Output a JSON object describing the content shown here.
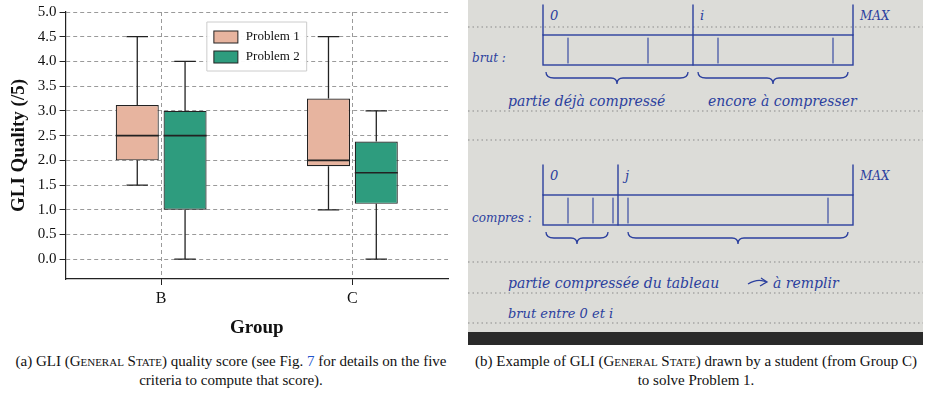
{
  "chart_data": {
    "type": "box",
    "x_label": "Group",
    "y_label": "GLI Quality (/5)",
    "categories": [
      "B",
      "C"
    ],
    "series": [
      {
        "name": "Problem 1",
        "color": "#e7b49f",
        "values": [
          {
            "whisker_low": 1.5,
            "q1": 2.0,
            "median": 2.5,
            "q3": 3.12,
            "whisker_high": 4.5
          },
          {
            "whisker_low": 1.0,
            "q1": 1.88,
            "median": 2.0,
            "q3": 3.25,
            "whisker_high": 4.5
          }
        ]
      },
      {
        "name": "Problem 2",
        "color": "#2e9c7e",
        "values": [
          {
            "whisker_low": 0.0,
            "q1": 1.0,
            "median": 2.5,
            "q3": 3.0,
            "whisker_high": 4.0
          },
          {
            "whisker_low": 0.0,
            "q1": 1.12,
            "median": 1.75,
            "q3": 2.38,
            "whisker_high": 3.0
          }
        ]
      }
    ],
    "ylim": [
      -0.4,
      5.0
    ],
    "yticks": [
      {
        "value": 0,
        "label": "0.0"
      },
      0.5,
      {
        "value": 1,
        "label": "1.0"
      },
      1.5,
      {
        "value": 2,
        "label": "2.0"
      },
      2.5,
      {
        "value": 3,
        "label": "3.0"
      },
      3.5,
      {
        "value": 4,
        "label": "4.0"
      },
      4.5,
      {
        "value": 5,
        "label": "5.0"
      }
    ],
    "grid": true,
    "legend": "upper center"
  },
  "photo": {
    "top_row": {
      "row_label": "brut :",
      "marks": [
        "0",
        "i",
        "MAX"
      ],
      "braces": [
        "partie déjà compressé",
        "encore à compresser"
      ]
    },
    "bottom_row": {
      "row_label": "compres :",
      "marks": [
        "0",
        "j",
        "MAX"
      ],
      "braces": [
        "partie compressée du tableau",
        "à remplir"
      ]
    },
    "note": "brut entre 0 et i"
  },
  "captions": {
    "a": [
      {
        "text": "(a) GLI ("
      },
      {
        "text": "General State",
        "style": "small-caps"
      },
      {
        "text": ") quality score (see Fig. "
      },
      {
        "text": "7",
        "style": "link"
      },
      {
        "text": " for details on the five criteria to compute that score)."
      }
    ],
    "b": [
      {
        "text": "(b) Example of GLI ("
      },
      {
        "text": "General State",
        "style": "small-caps"
      },
      {
        "text": ") drawn by a student (from Group C) to solve Problem 1."
      }
    ]
  }
}
